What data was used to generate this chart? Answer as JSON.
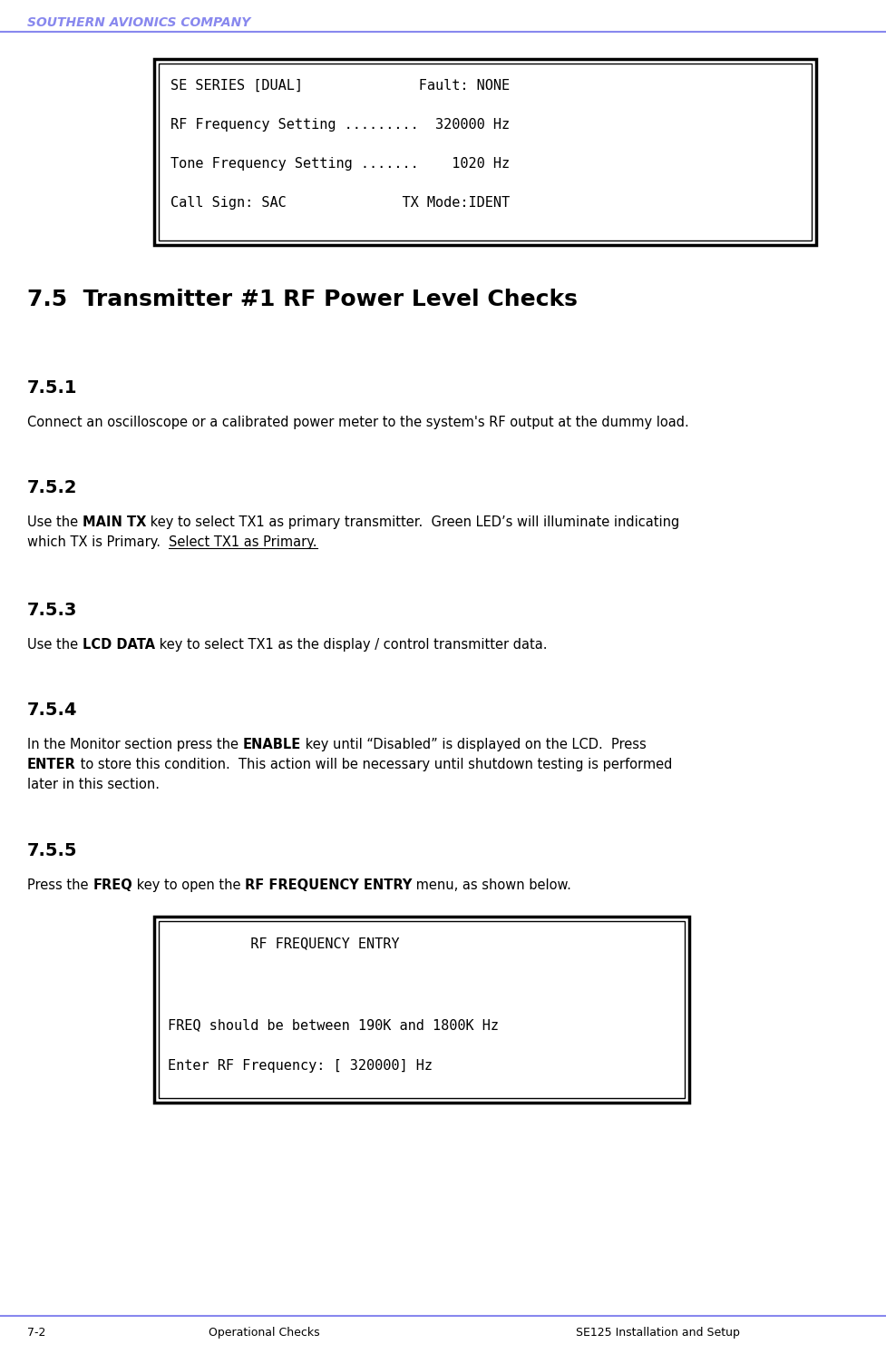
{
  "header_text": "SOUTHERN AVIONICS COMPANY",
  "header_color": "#8888ee",
  "header_line_color": "#8888ee",
  "footer_line_color": "#8888ee",
  "footer_left": "7-2",
  "footer_center": "Operational Checks",
  "footer_right": "SE125 Installation and Setup",
  "section_title": "7.5  Transmitter #1 RF Power Level Checks",
  "box1_lines": [
    "SE SERIES [DUAL]              Fault: NONE",
    "RF Frequency Setting .........  320000 Hz",
    "Tone Frequency Setting .......    1020 Hz",
    "Call Sign: SAC              TX Mode:IDENT"
  ],
  "box2_lines": [
    "          RF FREQUENCY ENTRY",
    "",
    "FREQ should be between 190K and 1800K Hz",
    "Enter RF Frequency: [ 320000] Hz"
  ],
  "bg_color": "#ffffff",
  "text_color": "#000000",
  "heading_fontsize": 14,
  "body_fontsize": 10.5,
  "mono_fontsize": 11,
  "header_fontsize": 10,
  "section_title_fontsize": 18
}
